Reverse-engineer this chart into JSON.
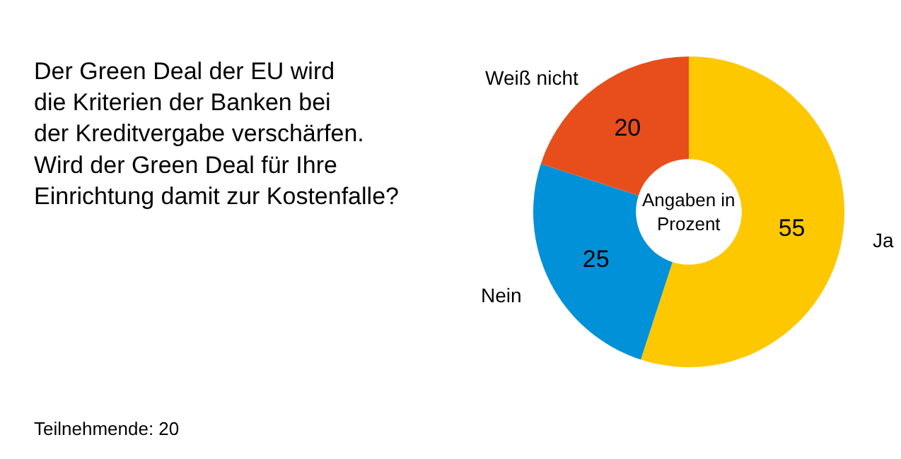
{
  "chart_data": {
    "type": "donut",
    "title": "Der Green Deal der EU wird\ndie Kriterien der Banken bei\nder Kreditvergabe verschärfen.\nWird der Green Deal für Ihre\nEinrichtung damit zur Kostenfalle?",
    "categories": [
      "Ja",
      "Nein",
      "Weiß nicht"
    ],
    "values": [
      55,
      25,
      20
    ],
    "colors": [
      "#fec800",
      "#0091d8",
      "#e84e1b"
    ],
    "data_labels": true,
    "annotations": [
      "Angaben in\nProzent",
      "Teilnehmende: 20"
    ]
  }
}
